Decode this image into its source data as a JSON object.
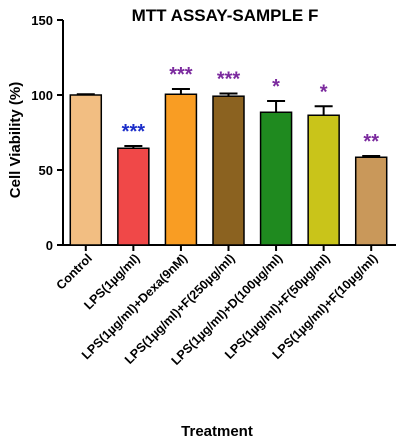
{
  "chart_data": {
    "type": "bar",
    "title": "MTT ASSAY-SAMPLE F",
    "xlabel": "Treatment",
    "ylabel": "Cell Viability (%)",
    "ylim": [
      0,
      150
    ],
    "yticks": [
      0,
      50,
      100,
      150
    ],
    "grid": false,
    "categories": [
      "Control",
      "LPS(1µg/ml)",
      "LPS(1µg/ml)+Dexa(9nM)",
      "LPS(1µg/ml)+F(250µg/ml)",
      "LPS(1µg/ml)+D(100µg/ml)",
      "LPS(1µg/ml)+F(50µg/ml)",
      "LPS(1µg/ml)+F(10µg/ml)"
    ],
    "values": [
      100,
      64.5,
      100.5,
      99.2,
      88.5,
      86.5,
      58.5
    ],
    "errors": [
      0.5,
      1.5,
      3.5,
      1.8,
      7.5,
      6.0,
      0.8
    ],
    "colors": [
      "#F2BE82",
      "#F04848",
      "#F99D23",
      "#8B6220",
      "#1F8A1F",
      "#C9C41A",
      "#C9985A"
    ],
    "annotations": [
      "",
      "***",
      "***",
      "***",
      "*",
      "*",
      "**"
    ],
    "annotation_colors": [
      "",
      "#1B2DC9",
      "#7B2A9E",
      "#7B2A9E",
      "#7B2A9E",
      "#7B2A9E",
      "#7B2A9E"
    ]
  }
}
